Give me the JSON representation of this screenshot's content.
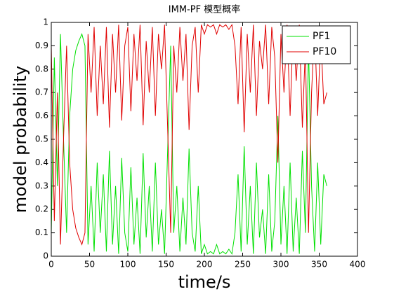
{
  "chart_data": {
    "type": "line",
    "title": "IMM-PF 模型概率",
    "xlabel": "time/s",
    "ylabel": "model probability",
    "x": [
      0,
      4,
      8,
      12,
      16,
      20,
      24,
      28,
      32,
      36,
      40,
      44,
      48,
      52,
      56,
      60,
      64,
      68,
      72,
      76,
      80,
      84,
      88,
      92,
      96,
      100,
      104,
      108,
      112,
      116,
      120,
      124,
      128,
      132,
      136,
      140,
      144,
      148,
      152,
      156,
      160,
      164,
      168,
      172,
      176,
      180,
      184,
      188,
      192,
      196,
      200,
      204,
      208,
      212,
      216,
      220,
      224,
      228,
      232,
      236,
      240,
      244,
      248,
      252,
      256,
      260,
      264,
      268,
      272,
      276,
      280,
      284,
      288,
      292,
      296,
      300,
      304,
      308,
      312,
      316,
      320,
      324,
      328,
      332,
      336,
      340,
      344,
      348,
      352,
      356,
      360
    ],
    "series": [
      {
        "name": "PF1",
        "color": "#00e000",
        "values": [
          0.1,
          0.85,
          0.3,
          0.95,
          0.5,
          0.1,
          0.6,
          0.8,
          0.88,
          0.92,
          0.95,
          0.9,
          0.05,
          0.3,
          0.02,
          0.4,
          0.1,
          0.35,
          0.02,
          0.45,
          0.05,
          0.3,
          0.01,
          0.42,
          0.1,
          0.02,
          0.38,
          0.05,
          0.25,
          0.01,
          0.44,
          0.08,
          0.3,
          0.02,
          0.4,
          0.05,
          0.2,
          0.01,
          0.45,
          0.9,
          0.1,
          0.3,
          0.02,
          0.25,
          0.05,
          0.46,
          0.1,
          0.02,
          0.3,
          0.01,
          0.05,
          0.01,
          0.02,
          0.01,
          0.05,
          0.01,
          0.02,
          0.01,
          0.03,
          0.01,
          0.1,
          0.35,
          0.02,
          0.47,
          0.05,
          0.3,
          0.01,
          0.4,
          0.08,
          0.2,
          0.01,
          0.35,
          0.02,
          0.15,
          0.6,
          0.05,
          0.3,
          0.01,
          0.4,
          0.02,
          0.25,
          0.01,
          0.45,
          0.1,
          0.9,
          0.3,
          0.02,
          0.4,
          0.05,
          0.35,
          0.3
        ]
      },
      {
        "name": "PF10",
        "color": "#e00000",
        "values": [
          0.9,
          0.15,
          0.7,
          0.05,
          0.5,
          0.9,
          0.4,
          0.2,
          0.12,
          0.08,
          0.05,
          0.1,
          0.95,
          0.7,
          0.98,
          0.6,
          0.9,
          0.65,
          0.98,
          0.55,
          0.95,
          0.7,
          0.99,
          0.58,
          0.9,
          0.98,
          0.62,
          0.95,
          0.75,
          0.99,
          0.56,
          0.92,
          0.7,
          0.98,
          0.6,
          0.95,
          0.8,
          0.99,
          0.55,
          0.1,
          0.9,
          0.7,
          0.98,
          0.75,
          0.95,
          0.54,
          0.9,
          0.98,
          0.7,
          0.99,
          0.95,
          0.99,
          0.98,
          0.99,
          0.95,
          0.99,
          0.98,
          0.99,
          0.97,
          0.99,
          0.9,
          0.65,
          0.98,
          0.53,
          0.95,
          0.7,
          0.99,
          0.6,
          0.92,
          0.8,
          0.99,
          0.65,
          0.98,
          0.85,
          0.4,
          0.95,
          0.7,
          0.99,
          0.6,
          0.98,
          0.75,
          0.99,
          0.55,
          0.9,
          0.1,
          0.7,
          0.98,
          0.6,
          0.95,
          0.65,
          0.7
        ]
      }
    ],
    "xlim": [
      0,
      400
    ],
    "xticks": [
      0,
      50,
      100,
      150,
      200,
      250,
      300,
      350,
      400
    ],
    "ylim": [
      0,
      1
    ],
    "yticks": [
      0,
      0.1,
      0.2,
      0.3,
      0.4,
      0.5,
      0.6,
      0.7,
      0.8,
      0.9,
      1
    ],
    "grid": false,
    "legend": "northeast"
  }
}
